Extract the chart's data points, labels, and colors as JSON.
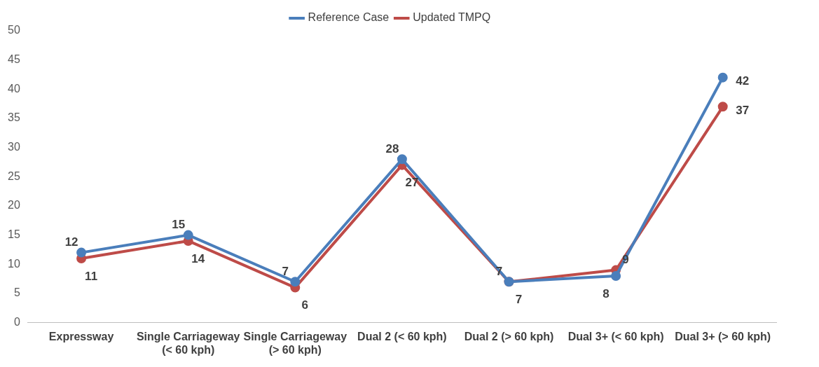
{
  "chart_data": {
    "type": "line",
    "categories": [
      "Expressway",
      "Single Carriageway (< 60 kph)",
      "Single Carriageway (> 60 kph)",
      "Dual 2 (< 60 kph)",
      "Dual 2 (> 60 kph)",
      "Dual 3+ (< 60 kph)",
      "Dual 3+ (> 60 kph)"
    ],
    "series": [
      {
        "name": "Reference Case",
        "color": "#4a7ebb",
        "values": [
          12,
          15,
          7,
          28,
          7,
          8,
          42
        ]
      },
      {
        "name": "Updated TMPQ",
        "color": "#be4b48",
        "values": [
          11,
          14,
          6,
          27,
          7,
          9,
          37
        ]
      }
    ],
    "ylim": [
      0,
      50
    ],
    "yticks": [
      0,
      5,
      10,
      15,
      20,
      25,
      30,
      35,
      40,
      45,
      50
    ],
    "grid": false,
    "legend": "top",
    "marker": "circle",
    "line_style": "solid",
    "data_labels": true
  }
}
